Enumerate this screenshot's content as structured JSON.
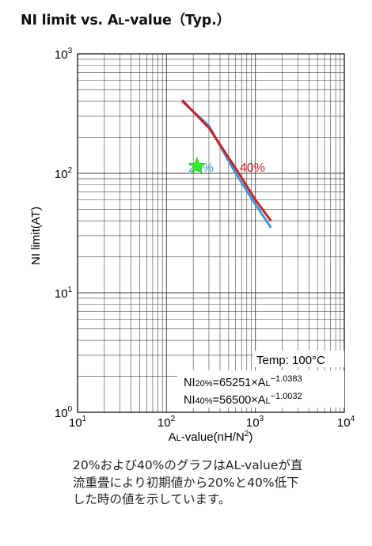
{
  "title": {
    "main": "NI limit vs. A",
    "sub": "L",
    "rest": "-value（Typ.）"
  },
  "chart_data": {
    "type": "line",
    "title": "NI limit vs. AL-value（Typ.）",
    "xlabel": "AL-value(nH/N2)",
    "ylabel": "NI limit(AT)",
    "xscale": "log",
    "yscale": "log",
    "xlim": [
      10,
      10000
    ],
    "ylim": [
      1,
      1000
    ],
    "grid": true,
    "x_tick_labels": [
      "10^1",
      "10^2",
      "10^3",
      "10^4"
    ],
    "y_tick_labels": [
      "10^0",
      "10^1",
      "10^2",
      "10^3"
    ],
    "series": [
      {
        "name": "20%",
        "color": "#3a9ad9",
        "x": [
          150,
          300,
          600,
          1000,
          1500
        ],
        "y": [
          400,
          250,
          100,
          55,
          35
        ]
      },
      {
        "name": "40%",
        "color": "#cc2229",
        "x": [
          150,
          300,
          600,
          1000,
          1500
        ],
        "y": [
          410,
          240,
          110,
          60,
          40
        ]
      }
    ],
    "series_labels": [
      {
        "text": "20%",
        "color": "#3a9ad9"
      },
      {
        "text": "40%",
        "color": "#cc2229"
      }
    ],
    "marker": {
      "shape": "star",
      "color": "#33ee22",
      "x": 220,
      "y": 115
    },
    "annotations": {
      "temp": "Temp: 100°C",
      "eq1": {
        "a": "NI",
        "b": "20%",
        "c": "=65251×A",
        "d": "L",
        "e": "−1.0383"
      },
      "eq2": {
        "a": "NI",
        "b": "40%",
        "c": "=56500×A",
        "d": "L",
        "e": "−1.0032"
      }
    }
  },
  "axis": {
    "x_base": "10",
    "x_exps": [
      "1",
      "2",
      "3",
      "4"
    ],
    "y_base": "10",
    "y_exps": [
      "0",
      "1",
      "2",
      "3"
    ],
    "xlabel": {
      "a": "A",
      "b": "L",
      "c": "-value(nH/N",
      "d": "2",
      "e": ")"
    },
    "ylabel": "NI limit(AT)"
  },
  "note": {
    "line1": "20%および40%のグラフはAL-valueが直",
    "line2": "流重畳により初期値から20%と40%低下",
    "line3": "した時の値を示しています。"
  }
}
